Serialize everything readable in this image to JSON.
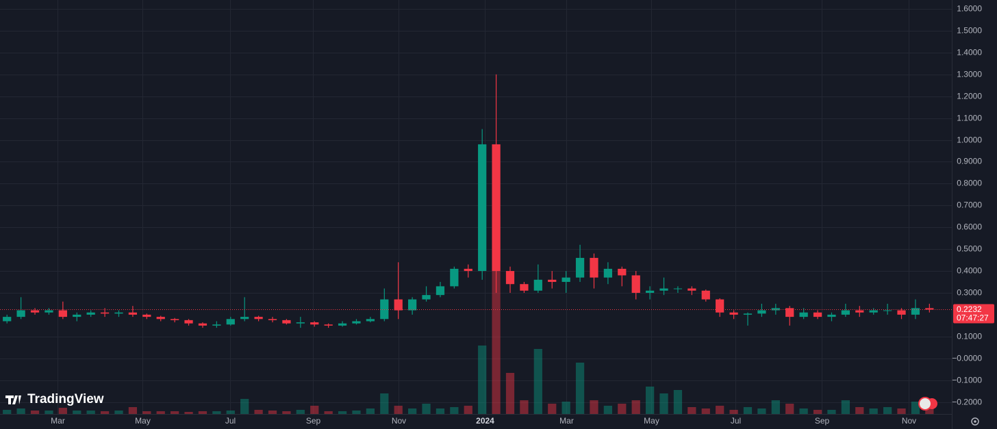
{
  "chart_data": {
    "type": "candlestick",
    "brand": "TradingView",
    "open": [
      0.17,
      0.19,
      0.22,
      0.21,
      0.22,
      0.19,
      0.2,
      0.21,
      0.205,
      0.21,
      0.2,
      0.19,
      0.18,
      0.175,
      0.16,
      0.15,
      0.155,
      0.18,
      0.19,
      0.18,
      0.175,
      0.16,
      0.165,
      0.155,
      0.15,
      0.16,
      0.17,
      0.18,
      0.27,
      0.22,
      0.27,
      0.29,
      0.33,
      0.41,
      0.4,
      0.98,
      0.4,
      0.34,
      0.31,
      0.36,
      0.35,
      0.37,
      0.46,
      0.37,
      0.41,
      0.38,
      0.3,
      0.31,
      0.32,
      0.32,
      0.31,
      0.27,
      0.21,
      0.2,
      0.205,
      0.22,
      0.23,
      0.19,
      0.21,
      0.19,
      0.2,
      0.22,
      0.21,
      0.22,
      0.22,
      0.2,
      0.23
    ],
    "high": [
      0.2,
      0.28,
      0.23,
      0.23,
      0.26,
      0.21,
      0.22,
      0.23,
      0.22,
      0.24,
      0.205,
      0.195,
      0.185,
      0.18,
      0.165,
      0.17,
      0.19,
      0.28,
      0.195,
      0.19,
      0.18,
      0.19,
      0.17,
      0.16,
      0.17,
      0.18,
      0.19,
      0.32,
      0.44,
      0.28,
      0.33,
      0.35,
      0.42,
      0.43,
      1.05,
      1.3,
      0.42,
      0.35,
      0.43,
      0.4,
      0.4,
      0.52,
      0.48,
      0.44,
      0.42,
      0.4,
      0.33,
      0.37,
      0.33,
      0.33,
      0.315,
      0.275,
      0.22,
      0.21,
      0.25,
      0.25,
      0.24,
      0.23,
      0.22,
      0.21,
      0.25,
      0.24,
      0.23,
      0.25,
      0.23,
      0.27,
      0.25
    ],
    "low": [
      0.16,
      0.18,
      0.2,
      0.2,
      0.18,
      0.17,
      0.19,
      0.19,
      0.19,
      0.19,
      0.18,
      0.17,
      0.165,
      0.15,
      0.14,
      0.14,
      0.15,
      0.17,
      0.17,
      0.165,
      0.155,
      0.14,
      0.145,
      0.14,
      0.145,
      0.155,
      0.165,
      0.17,
      0.18,
      0.2,
      0.26,
      0.28,
      0.32,
      0.37,
      0.36,
      0.3,
      0.3,
      0.3,
      0.3,
      0.32,
      0.3,
      0.35,
      0.32,
      0.34,
      0.33,
      0.27,
      0.27,
      0.29,
      0.3,
      0.29,
      0.26,
      0.19,
      0.18,
      0.15,
      0.19,
      0.2,
      0.15,
      0.18,
      0.18,
      0.17,
      0.19,
      0.19,
      0.2,
      0.2,
      0.18,
      0.18,
      0.21
    ],
    "close": [
      0.19,
      0.22,
      0.21,
      0.22,
      0.19,
      0.2,
      0.21,
      0.205,
      0.21,
      0.2,
      0.19,
      0.18,
      0.175,
      0.16,
      0.15,
      0.155,
      0.18,
      0.19,
      0.18,
      0.175,
      0.16,
      0.165,
      0.155,
      0.15,
      0.16,
      0.17,
      0.18,
      0.27,
      0.22,
      0.27,
      0.29,
      0.33,
      0.41,
      0.4,
      0.98,
      0.4,
      0.34,
      0.31,
      0.36,
      0.35,
      0.37,
      0.46,
      0.37,
      0.41,
      0.38,
      0.3,
      0.31,
      0.32,
      0.32,
      0.31,
      0.27,
      0.21,
      0.2,
      0.205,
      0.22,
      0.23,
      0.19,
      0.21,
      0.19,
      0.2,
      0.22,
      0.21,
      0.22,
      0.22,
      0.2,
      0.23,
      0.2232
    ],
    "volume": [
      6,
      8,
      5,
      5,
      9,
      5,
      5,
      4,
      5,
      10,
      4,
      4,
      4,
      3,
      4,
      4,
      5,
      22,
      6,
      5,
      4,
      6,
      12,
      4,
      4,
      5,
      8,
      30,
      12,
      8,
      15,
      8,
      10,
      12,
      100,
      290,
      60,
      20,
      95,
      15,
      18,
      75,
      20,
      12,
      15,
      20,
      40,
      30,
      35,
      10,
      8,
      12,
      6,
      10,
      8,
      20,
      15,
      8,
      6,
      6,
      20,
      10,
      8,
      10,
      8,
      18,
      10
    ],
    "up_color": "#089981",
    "down_color": "#f23645",
    "last_price": 0.2232,
    "countdown": "07:47:27",
    "xlim": [
      -0.5,
      67.6
    ],
    "xticks": [
      {
        "value": 3.6,
        "label": "Mar"
      },
      {
        "value": 9.7,
        "label": "May"
      },
      {
        "value": 15.96,
        "label": "Jul"
      },
      {
        "value": 21.9,
        "label": "Sep"
      },
      {
        "value": 28.0,
        "label": "Nov"
      },
      {
        "value": 34.2,
        "label": "2024"
      },
      {
        "value": 40.0,
        "label": "Mar"
      },
      {
        "value": 46.1,
        "label": "May"
      },
      {
        "value": 52.1,
        "label": "Jul"
      },
      {
        "value": 58.3,
        "label": "Sep"
      },
      {
        "value": 64.5,
        "label": "Nov"
      }
    ],
    "ylim": [
      -0.2545,
      1.6407
    ],
    "yticks": [
      {
        "value": 1.6,
        "label": "1.6000"
      },
      {
        "value": 1.5,
        "label": "1.5000"
      },
      {
        "value": 1.4,
        "label": "1.4000"
      },
      {
        "value": 1.3,
        "label": "1.3000"
      },
      {
        "value": 1.2,
        "label": "1.2000"
      },
      {
        "value": 1.1,
        "label": "1.1000"
      },
      {
        "value": 1.0,
        "label": "1.0000"
      },
      {
        "value": 0.9,
        "label": "0.9000"
      },
      {
        "value": 0.8,
        "label": "0.8000"
      },
      {
        "value": 0.7,
        "label": "0.7000"
      },
      {
        "value": 0.6,
        "label": "0.6000"
      },
      {
        "value": 0.5,
        "label": "0.5000"
      },
      {
        "value": 0.4,
        "label": "0.4000"
      },
      {
        "value": 0.3,
        "label": "0.3000"
      },
      {
        "value": 0.1,
        "label": "0.1000"
      },
      {
        "value": 0,
        "label": "−0.0000"
      },
      {
        "value": -0.1,
        "label": "−0.1000"
      },
      {
        "value": -0.2,
        "label": "−0.2000"
      }
    ],
    "grid": true
  }
}
